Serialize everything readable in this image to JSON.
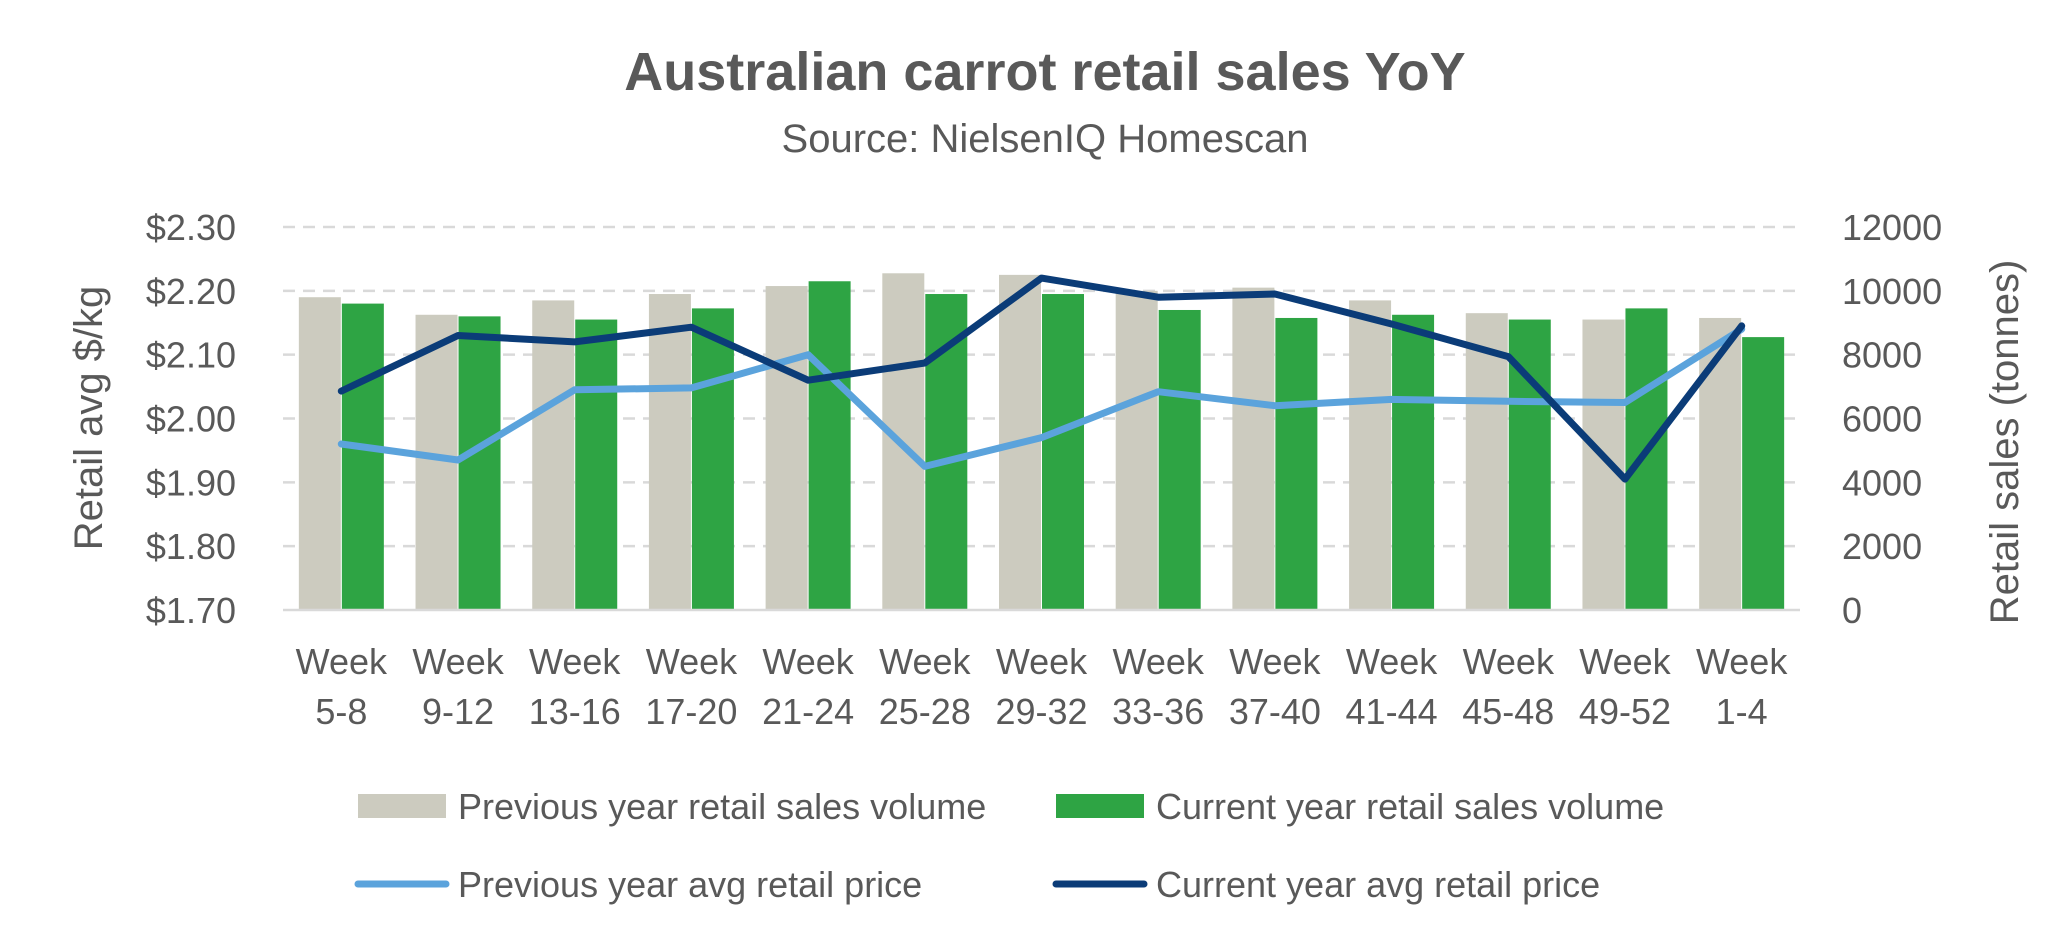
{
  "chart_data": {
    "type": "bar",
    "title": "Australian carrot retail sales YoY",
    "subtitle": "Source: NielsenIQ Homescan",
    "categories": [
      [
        "Week",
        "5-8"
      ],
      [
        "Week",
        "9-12"
      ],
      [
        "Week",
        "13-16"
      ],
      [
        "Week",
        "17-20"
      ],
      [
        "Week",
        "21-24"
      ],
      [
        "Week",
        "25-28"
      ],
      [
        "Week",
        "29-32"
      ],
      [
        "Week",
        "33-36"
      ],
      [
        "Week",
        "37-40"
      ],
      [
        "Week",
        "41-44"
      ],
      [
        "Week",
        "45-48"
      ],
      [
        "Week",
        "49-52"
      ],
      [
        "Week",
        "1-4"
      ]
    ],
    "y_left": {
      "label": "Retail avg $/kg",
      "min": 1.7,
      "max": 2.3,
      "step": 0.1,
      "ticks": [
        "$1.70",
        "$1.80",
        "$1.90",
        "$2.00",
        "$2.10",
        "$2.20",
        "$2.30"
      ]
    },
    "y_right": {
      "label": "Retail sales (tonnes)",
      "min": 0,
      "max": 12000,
      "step": 2000,
      "ticks": [
        "0",
        "2000",
        "4000",
        "6000",
        "8000",
        "10000",
        "12000"
      ]
    },
    "grid": true,
    "legend_position": "bottom",
    "bar_series": [
      {
        "name": "Previous year retail sales volume",
        "axis": "right",
        "color": "#CCCBBF",
        "values": [
          9800,
          9250,
          9700,
          9900,
          10150,
          10550,
          10500,
          10000,
          10100,
          9700,
          9300,
          9100,
          9150
        ]
      },
      {
        "name": "Current year retail sales volume",
        "axis": "right",
        "color": "#2EA444",
        "values": [
          9600,
          9200,
          9100,
          9450,
          10300,
          9900,
          9900,
          9400,
          9150,
          9250,
          9100,
          9450,
          8550
        ]
      }
    ],
    "line_series": [
      {
        "name": "Previous year avg retail price",
        "axis": "left",
        "color": "#5BA3DC",
        "values": [
          1.96,
          1.935,
          2.045,
          2.048,
          2.1,
          1.925,
          1.97,
          2.042,
          2.02,
          2.03,
          2.027,
          2.025,
          2.14
        ]
      },
      {
        "name": "Current year avg retail price",
        "axis": "left",
        "color": "#0B3C78",
        "values": [
          2.043,
          2.13,
          2.12,
          2.143,
          2.06,
          2.087,
          2.22,
          2.19,
          2.195,
          2.148,
          2.097,
          1.905,
          2.145
        ]
      }
    ]
  }
}
